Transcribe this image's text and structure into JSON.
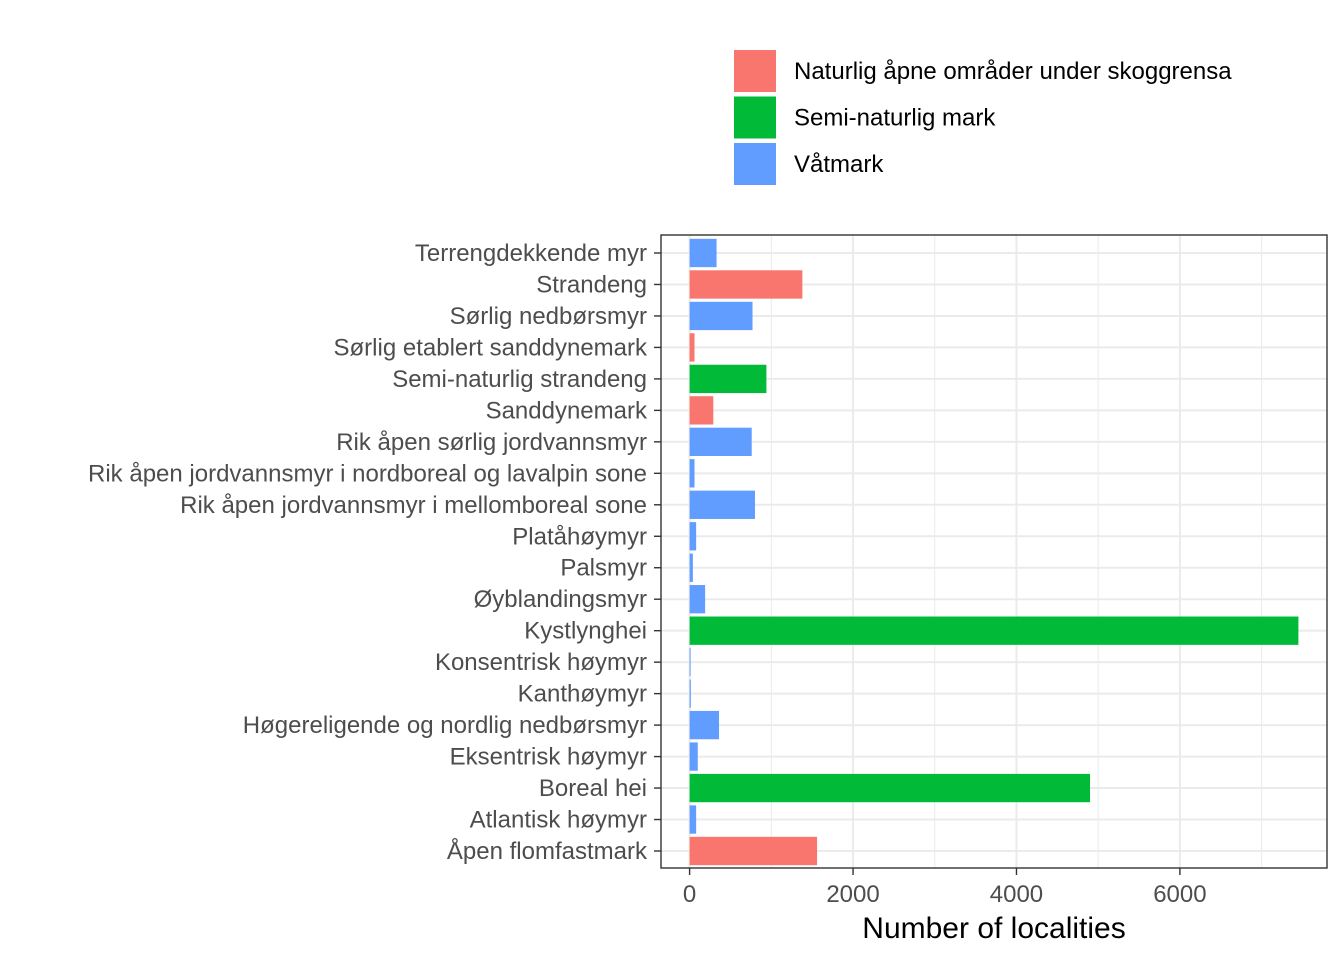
{
  "chart_data": {
    "type": "bar",
    "orientation": "horizontal",
    "xlabel": "Number of localities",
    "ylabel": "",
    "xlim": [
      -350,
      7800
    ],
    "xticks": [
      0,
      2000,
      4000,
      6000
    ],
    "grid": true,
    "legend": {
      "placement": "top",
      "entries": [
        {
          "name": "Naturlig åpne områder under skoggrensa",
          "color": "#F8766D"
        },
        {
          "name": "Semi-naturlig mark",
          "color": "#00BA38"
        },
        {
          "name": "Våtmark",
          "color": "#619CFF"
        }
      ]
    },
    "categories": [
      "Terrengdekkende myr",
      "Strandeng",
      "Sørlig nedbørsmyr",
      "Sørlig etablert sanddynemark",
      "Semi-naturlig strandeng",
      "Sanddynemark",
      "Rik åpen sørlig jordvannsmyr",
      "Rik åpen jordvannsmyr i nordboreal og lavalpin sone",
      "Rik åpen jordvannsmyr i mellomboreal sone",
      "Platåhøymyr",
      "Palsmyr",
      "Øyblandingsmyr",
      "Kystlynghei",
      "Konsentrisk høymyr",
      "Kanthøymyr",
      "Høgereligende og nordlig nedbørsmyr",
      "Eksentrisk høymyr",
      "Boreal hei",
      "Atlantisk høymyr",
      "Åpen flomfastmark"
    ],
    "values": [
      330,
      1380,
      770,
      60,
      940,
      290,
      760,
      60,
      800,
      80,
      40,
      190,
      7450,
      5,
      15,
      360,
      100,
      4900,
      80,
      1560
    ],
    "groups": [
      "Våtmark",
      "Naturlig åpne områder under skoggrensa",
      "Våtmark",
      "Naturlig åpne områder under skoggrensa",
      "Semi-naturlig mark",
      "Naturlig åpne områder under skoggrensa",
      "Våtmark",
      "Våtmark",
      "Våtmark",
      "Våtmark",
      "Våtmark",
      "Våtmark",
      "Semi-naturlig mark",
      "Våtmark",
      "Våtmark",
      "Våtmark",
      "Våtmark",
      "Semi-naturlig mark",
      "Våtmark",
      "Naturlig åpne områder under skoggrensa"
    ]
  }
}
